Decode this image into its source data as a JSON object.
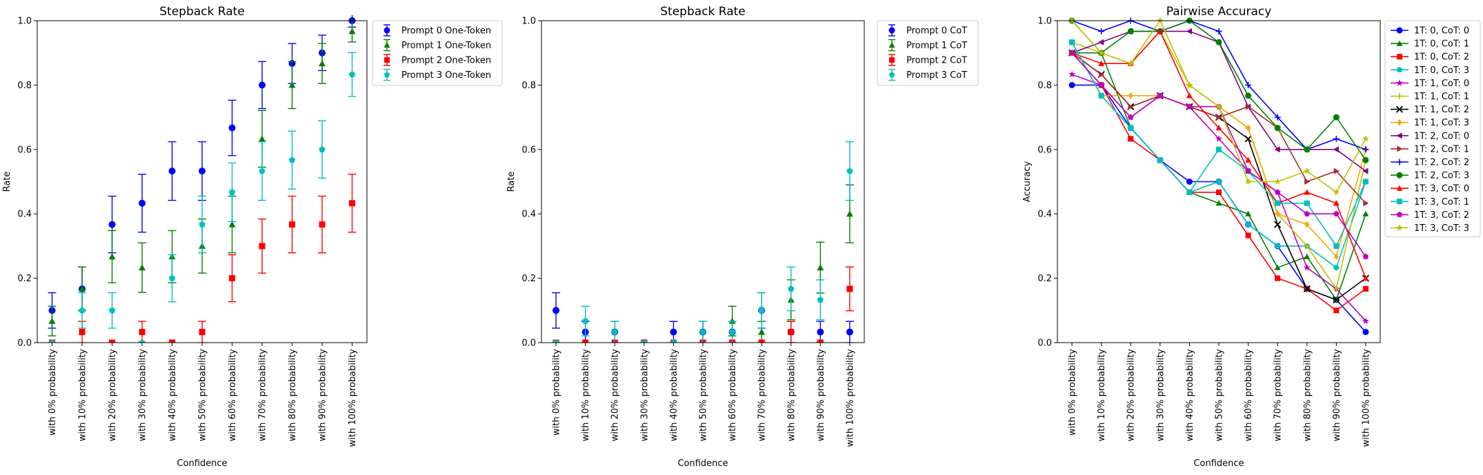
{
  "chart_data": [
    {
      "type": "scatter",
      "title": "Stepback Rate",
      "xlabel": "Confidence",
      "ylabel": "Rate",
      "ylim": [
        0,
        1
      ],
      "yticks": [
        "0.0",
        "0.2",
        "0.4",
        "0.6",
        "0.8",
        "1.0"
      ],
      "categories": [
        "with 0% probability",
        "with 10% probability",
        "with 20% probability",
        "with 30% probability",
        "with 40% probability",
        "with 50% probability",
        "with 60% probability",
        "with 70% probability",
        "with 80% probability",
        "with 90% probability",
        "with 100% probability"
      ],
      "legend_position": "outside-top-right",
      "series": [
        {
          "name": "Prompt 0 One-Token",
          "color": "#0000ff",
          "marker": "circle",
          "values": [
            0.1,
            0.167,
            0.367,
            0.433,
            0.533,
            0.533,
            0.667,
            0.8,
            0.867,
            0.9,
            1.0
          ],
          "err": [
            0.055,
            0.068,
            0.088,
            0.09,
            0.091,
            0.091,
            0.086,
            0.073,
            0.062,
            0.055,
            0.02
          ]
        },
        {
          "name": "Prompt 1 One-Token",
          "color": "#008000",
          "marker": "triangle",
          "values": [
            0.067,
            0.167,
            0.267,
            0.233,
            0.267,
            0.3,
            0.367,
            0.633,
            0.8,
            0.867,
            0.967
          ],
          "err": [
            0.046,
            0.068,
            0.081,
            0.077,
            0.081,
            0.084,
            0.088,
            0.088,
            0.073,
            0.062,
            0.033
          ]
        },
        {
          "name": "Prompt 2 One-Token",
          "color": "#ff0000",
          "marker": "square",
          "values": [
            0.0,
            0.033,
            0.0,
            0.033,
            0.0,
            0.033,
            0.2,
            0.3,
            0.367,
            0.367,
            0.433
          ],
          "err": [
            0.0,
            0.033,
            0.0,
            0.033,
            0.0,
            0.033,
            0.073,
            0.084,
            0.088,
            0.088,
            0.09
          ]
        },
        {
          "name": "Prompt 3 One-Token",
          "color": "#00bfbf",
          "marker": "pentagon",
          "values": [
            0.0,
            0.1,
            0.1,
            0.0,
            0.2,
            0.367,
            0.467,
            0.533,
            0.567,
            0.6,
            0.833
          ],
          "err": [
            0.0,
            0.055,
            0.055,
            0.0,
            0.073,
            0.088,
            0.091,
            0.091,
            0.09,
            0.089,
            0.068
          ]
        }
      ]
    },
    {
      "type": "scatter",
      "title": "Stepback Rate",
      "xlabel": "Confidence",
      "ylabel": "Rate",
      "ylim": [
        0,
        1
      ],
      "yticks": [
        "0.0",
        "0.2",
        "0.4",
        "0.6",
        "0.8",
        "1.0"
      ],
      "categories": [
        "with 0% probability",
        "with 10% probability",
        "with 20% probability",
        "with 30% probability",
        "with 40% probability",
        "with 50% probability",
        "with 60% probability",
        "with 70% probability",
        "with 80% probability",
        "with 90% probability",
        "with 100% probability"
      ],
      "legend_position": "outside-top-right",
      "series": [
        {
          "name": "Prompt 0 CoT",
          "color": "#0000ff",
          "marker": "circle",
          "values": [
            0.1,
            0.033,
            0.033,
            0.0,
            0.033,
            0.033,
            0.033,
            0.1,
            0.033,
            0.033,
            0.033
          ],
          "err": [
            0.055,
            0.033,
            0.033,
            0.0,
            0.033,
            0.033,
            0.033,
            0.055,
            0.033,
            0.033,
            0.033
          ]
        },
        {
          "name": "Prompt 1 CoT",
          "color": "#008000",
          "marker": "triangle",
          "values": [
            0.0,
            0.0,
            0.0,
            0.0,
            0.0,
            0.0,
            0.067,
            0.033,
            0.133,
            0.233,
            0.4
          ],
          "err": [
            0.0,
            0.0,
            0.0,
            0.0,
            0.0,
            0.0,
            0.046,
            0.033,
            0.062,
            0.079,
            0.09
          ]
        },
        {
          "name": "Prompt 2 CoT",
          "color": "#ff0000",
          "marker": "square",
          "values": [
            0.0,
            0.0,
            0.0,
            0.0,
            0.0,
            0.0,
            0.0,
            0.0,
            0.033,
            0.0,
            0.167
          ],
          "err": [
            0.0,
            0.0,
            0.0,
            0.0,
            0.0,
            0.0,
            0.0,
            0.0,
            0.033,
            0.0,
            0.068
          ]
        },
        {
          "name": "Prompt 3 CoT",
          "color": "#00bfbf",
          "marker": "pentagon",
          "values": [
            0.0,
            0.067,
            0.033,
            0.0,
            0.0,
            0.033,
            0.033,
            0.1,
            0.167,
            0.133,
            0.533
          ],
          "err": [
            0.0,
            0.046,
            0.033,
            0.0,
            0.0,
            0.033,
            0.033,
            0.055,
            0.068,
            0.062,
            0.091
          ]
        }
      ]
    },
    {
      "type": "line",
      "title": "Pairwise Accuracy",
      "xlabel": "Confidence",
      "ylabel": "Accuracy",
      "ylim": [
        0,
        1
      ],
      "yticks": [
        "0.0",
        "0.2",
        "0.4",
        "0.6",
        "0.8",
        "1.0"
      ],
      "categories": [
        "with 0% probability",
        "with 10% probability",
        "with 20% probability",
        "with 30% probability",
        "with 40% probability",
        "with 50% probability",
        "with 60% probability",
        "with 70% probability",
        "with 80% probability",
        "with 90% probability",
        "with 100% probability"
      ],
      "legend_position": "outside-top-right",
      "series": [
        {
          "name": "1T: 0, CoT: 0",
          "color": "#0000ff",
          "marker": "circle",
          "values": [
            0.8,
            0.8,
            0.667,
            0.567,
            0.5,
            0.5,
            0.367,
            0.3,
            0.167,
            0.133,
            0.033
          ]
        },
        {
          "name": "1T: 0, CoT: 1",
          "color": "#008000",
          "marker": "triangle",
          "values": [
            0.9,
            0.9,
            0.667,
            0.567,
            0.467,
            0.433,
            0.4,
            0.233,
            0.267,
            0.133,
            0.4
          ]
        },
        {
          "name": "1T: 0, CoT: 2",
          "color": "#ff0000",
          "marker": "square",
          "values": [
            0.9,
            0.8,
            0.633,
            0.567,
            0.467,
            0.467,
            0.333,
            0.2,
            0.167,
            0.1,
            0.167
          ]
        },
        {
          "name": "1T: 0, CoT: 3",
          "color": "#00bfbf",
          "marker": "pentagon",
          "values": [
            0.933,
            0.767,
            0.667,
            0.567,
            0.467,
            0.5,
            0.367,
            0.3,
            0.3,
            0.233,
            0.5
          ]
        },
        {
          "name": "1T: 1, CoT: 0",
          "color": "#bf00bf",
          "marker": "star",
          "values": [
            0.833,
            0.8,
            0.7,
            0.767,
            0.733,
            0.633,
            0.533,
            0.467,
            0.233,
            0.167,
            0.067
          ]
        },
        {
          "name": "1T: 1, CoT: 1",
          "color": "#bfbf00",
          "marker": "plus",
          "values": [
            0.933,
            0.9,
            0.867,
            0.967,
            0.8,
            0.733,
            0.667,
            0.4,
            0.3,
            0.167,
            0.567
          ]
        },
        {
          "name": "1T: 1, CoT: 2",
          "color": "#000000",
          "marker": "x",
          "values": [
            0.9,
            0.833,
            0.733,
            0.767,
            0.733,
            0.7,
            0.633,
            0.367,
            0.167,
            0.133,
            0.2
          ]
        },
        {
          "name": "1T: 1, CoT: 3",
          "color": "#ffa500",
          "marker": "diamond",
          "values": [
            0.933,
            0.767,
            0.767,
            0.767,
            0.733,
            0.733,
            0.667,
            0.4,
            0.367,
            0.267,
            0.6
          ]
        },
        {
          "name": "1T: 2, CoT: 0",
          "color": "#800080",
          "marker": "triangle-left",
          "values": [
            0.9,
            0.933,
            0.967,
            0.967,
            0.967,
            0.933,
            0.733,
            0.6,
            0.6,
            0.6,
            0.533
          ]
        },
        {
          "name": "1T: 2, CoT: 1",
          "color": "#a52a2a",
          "marker": "triangle-right",
          "values": [
            0.9,
            0.833,
            0.733,
            0.767,
            0.733,
            0.7,
            0.733,
            0.667,
            0.5,
            0.533,
            0.433
          ]
        },
        {
          "name": "1T: 2, CoT: 2",
          "color": "#0000ff",
          "marker": "plus",
          "values": [
            1.0,
            0.967,
            1.0,
            0.967,
            1.0,
            0.967,
            0.8,
            0.7,
            0.6,
            0.633,
            0.6
          ]
        },
        {
          "name": "1T: 2, CoT: 3",
          "color": "#008000",
          "marker": "circle",
          "values": [
            1.0,
            0.9,
            0.967,
            0.967,
            1.0,
            0.933,
            0.767,
            0.667,
            0.6,
            0.7,
            0.567
          ]
        },
        {
          "name": "1T: 3, CoT: 0",
          "color": "#ff0000",
          "marker": "triangle",
          "values": [
            0.9,
            0.867,
            0.867,
            0.967,
            0.767,
            0.667,
            0.567,
            0.433,
            0.467,
            0.433,
            0.2
          ]
        },
        {
          "name": "1T: 3, CoT: 1",
          "color": "#00bfbf",
          "marker": "square",
          "values": [
            0.933,
            0.767,
            0.667,
            0.567,
            0.467,
            0.6,
            0.533,
            0.433,
            0.433,
            0.3,
            0.5
          ]
        },
        {
          "name": "1T: 3, CoT: 2",
          "color": "#bf00bf",
          "marker": "pentagon",
          "values": [
            0.9,
            0.8,
            0.7,
            0.767,
            0.733,
            0.733,
            0.533,
            0.467,
            0.4,
            0.4,
            0.267
          ]
        },
        {
          "name": "1T: 3, CoT: 3",
          "color": "#bfbf00",
          "marker": "star",
          "values": [
            1.0,
            0.9,
            0.867,
            1.0,
            0.8,
            0.733,
            0.5,
            0.5,
            0.533,
            0.467,
            0.633
          ]
        }
      ]
    }
  ]
}
